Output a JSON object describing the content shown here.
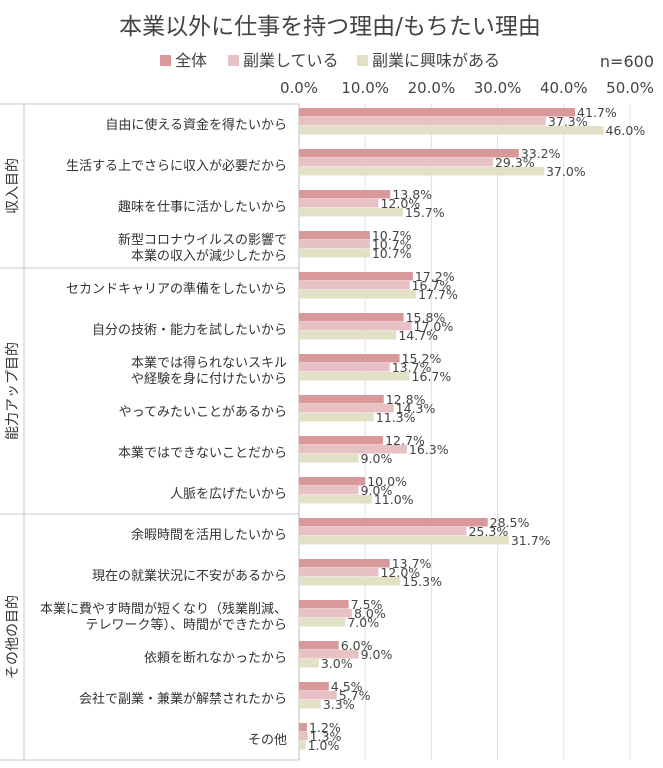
{
  "chart_data": {
    "type": "bar",
    "orientation": "horizontal",
    "title": "本業以外に仕事を持つ理由/もちたい理由",
    "sample_note": "n=600",
    "xlim": [
      0,
      50
    ],
    "x_ticks": [
      "0.0%",
      "10.0%",
      "20.0%",
      "30.0%",
      "40.0%",
      "50.0%"
    ],
    "grid": true,
    "legend_position": "top-left",
    "series": [
      {
        "name": "全体",
        "color": "#d9999b"
      },
      {
        "name": "副業している",
        "color": "#e8c1c5"
      },
      {
        "name": "副業に興味がある",
        "color": "#e3e1c5"
      }
    ],
    "groups": [
      {
        "label": "収入目的",
        "items": [
          0,
          3
        ]
      },
      {
        "label": "能力アップ目的",
        "items": [
          4,
          9
        ]
      },
      {
        "label": "その他の目的",
        "items": [
          10,
          15
        ]
      }
    ],
    "categories": [
      {
        "lines": [
          "自由に使える資金を得たいから"
        ],
        "values": [
          41.7,
          37.3,
          46.0
        ],
        "labels": [
          "41.7%",
          "37.3%",
          "46.0%"
        ]
      },
      {
        "lines": [
          "生活する上でさらに収入が必要だから"
        ],
        "values": [
          33.2,
          29.3,
          37.0
        ],
        "labels": [
          "33.2%",
          "29.3%",
          "37.0%"
        ]
      },
      {
        "lines": [
          "趣味を仕事に活かしたいから"
        ],
        "values": [
          13.8,
          12.0,
          15.7
        ],
        "labels": [
          "13.8%",
          "12.0%",
          "15.7%"
        ]
      },
      {
        "lines": [
          "新型コロナウイルスの影響で",
          "本業の収入が減少したから"
        ],
        "values": [
          10.7,
          10.7,
          10.7
        ],
        "labels": [
          "10.7%",
          "10.7%",
          "10.7%"
        ]
      },
      {
        "lines": [
          "セカンドキャリアの準備をしたいから"
        ],
        "values": [
          17.2,
          16.7,
          17.7
        ],
        "labels": [
          "17.2%",
          "16.7%",
          "17.7%"
        ]
      },
      {
        "lines": [
          "自分の技術・能力を試したいから"
        ],
        "values": [
          15.8,
          17.0,
          14.7
        ],
        "labels": [
          "15.8%",
          "17.0%",
          "14.7%"
        ]
      },
      {
        "lines": [
          "本業では得られないスキル",
          "や経験を身に付けたいから"
        ],
        "values": [
          15.2,
          13.7,
          16.7
        ],
        "labels": [
          "15.2%",
          "13.7%",
          "16.7%"
        ]
      },
      {
        "lines": [
          "やってみたいことがあるから"
        ],
        "values": [
          12.8,
          14.3,
          11.3
        ],
        "labels": [
          "12.8%",
          "14.3%",
          "11.3%"
        ]
      },
      {
        "lines": [
          "本業ではできないことだから"
        ],
        "values": [
          12.7,
          16.3,
          9.0
        ],
        "labels": [
          "12.7%",
          "16.3%",
          "9.0%"
        ]
      },
      {
        "lines": [
          "人脈を広げたいから"
        ],
        "values": [
          10.0,
          9.0,
          11.0
        ],
        "labels": [
          "10.0%",
          "9.0%",
          "11.0%"
        ]
      },
      {
        "lines": [
          "余暇時間を活用したいから"
        ],
        "values": [
          28.5,
          25.3,
          31.7
        ],
        "labels": [
          "28.5%",
          "25.3%",
          "31.7%"
        ]
      },
      {
        "lines": [
          "現在の就業状況に不安があるから"
        ],
        "values": [
          13.7,
          12.0,
          15.3
        ],
        "labels": [
          "13.7%",
          "12.0%",
          "15.3%"
        ]
      },
      {
        "lines": [
          "本業に費やす時間が短くなり（残業削減、",
          "テレワーク等）、時間ができたから"
        ],
        "values": [
          7.5,
          8.0,
          7.0
        ],
        "labels": [
          "7.5%",
          "8.0%",
          "7.0%"
        ]
      },
      {
        "lines": [
          "依頼を断れなかったから"
        ],
        "values": [
          6.0,
          9.0,
          3.0
        ],
        "labels": [
          "6.0%",
          "9.0%",
          "3.0%"
        ]
      },
      {
        "lines": [
          "会社で副業・兼業が解禁されたから"
        ],
        "values": [
          4.5,
          5.7,
          3.3
        ],
        "labels": [
          "4.5%",
          "5.7%",
          "3.3%"
        ]
      },
      {
        "lines": [
          "その他"
        ],
        "values": [
          1.2,
          1.3,
          1.0
        ],
        "labels": [
          "1.2%",
          "1.3%",
          "1.0%"
        ]
      }
    ]
  }
}
